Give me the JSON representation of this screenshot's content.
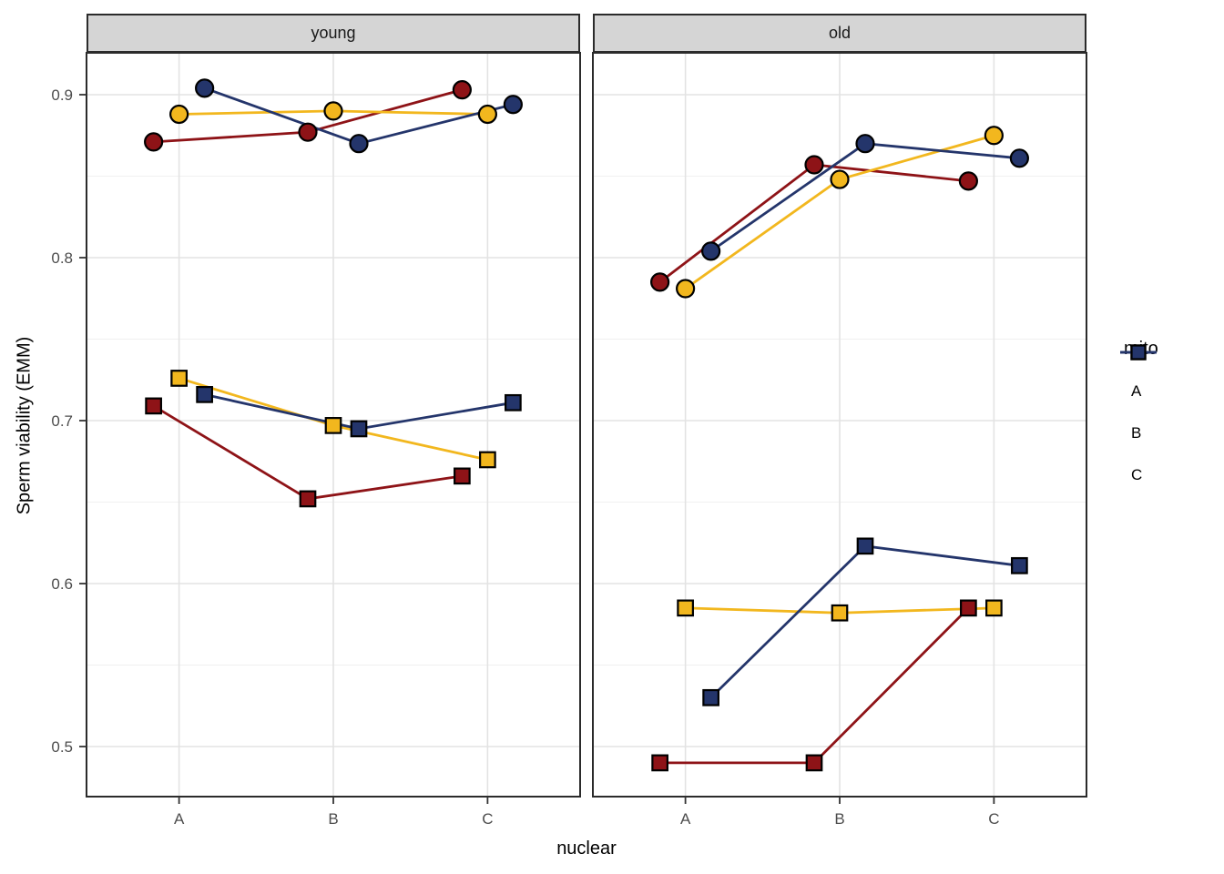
{
  "chart_data": {
    "type": "line",
    "title": "",
    "facets": [
      "young",
      "old"
    ],
    "categories": [
      "A",
      "B",
      "C"
    ],
    "xlabel": "nuclear",
    "ylabel": "Sperm viability (EMM)",
    "y_ticks": [
      0.5,
      0.6,
      0.7,
      0.8,
      0.9
    ],
    "y_tick_labels": [
      "0.5",
      "0.6",
      "0.7",
      "0.8",
      "0.9"
    ],
    "y_minor_ticks": [
      0.55,
      0.65,
      0.75,
      0.85
    ],
    "ylim": [
      0.469,
      0.926
    ],
    "grid": "major-and-minor",
    "legend": {
      "title": "mito",
      "position": "right",
      "entries": [
        {
          "label": "A",
          "color": "#8E1317"
        },
        {
          "label": "B",
          "color": "#F2B71E"
        },
        {
          "label": "C",
          "color": "#24356B"
        }
      ]
    },
    "series": [
      {
        "facet": "young",
        "mito": "A",
        "marker": "circle",
        "color": "#8E1317",
        "values": [
          0.871,
          0.877,
          0.903
        ]
      },
      {
        "facet": "young",
        "mito": "B",
        "marker": "circle",
        "color": "#F2B71E",
        "values": [
          0.888,
          0.89,
          0.888
        ]
      },
      {
        "facet": "young",
        "mito": "C",
        "marker": "circle",
        "color": "#24356B",
        "values": [
          0.904,
          0.87,
          0.894
        ]
      },
      {
        "facet": "young",
        "mito": "A",
        "marker": "square",
        "color": "#8E1317",
        "values": [
          0.709,
          0.652,
          0.666
        ]
      },
      {
        "facet": "young",
        "mito": "B",
        "marker": "square",
        "color": "#F2B71E",
        "values": [
          0.726,
          0.697,
          0.676
        ]
      },
      {
        "facet": "young",
        "mito": "C",
        "marker": "square",
        "color": "#24356B",
        "values": [
          0.716,
          0.695,
          0.711
        ]
      },
      {
        "facet": "old",
        "mito": "A",
        "marker": "circle",
        "color": "#8E1317",
        "values": [
          0.785,
          0.857,
          0.847
        ]
      },
      {
        "facet": "old",
        "mito": "B",
        "marker": "circle",
        "color": "#F2B71E",
        "values": [
          0.781,
          0.848,
          0.875
        ]
      },
      {
        "facet": "old",
        "mito": "C",
        "marker": "circle",
        "color": "#24356B",
        "values": [
          0.804,
          0.87,
          0.861
        ]
      },
      {
        "facet": "old",
        "mito": "A",
        "marker": "square",
        "color": "#8E1317",
        "values": [
          0.49,
          0.49,
          0.585
        ]
      },
      {
        "facet": "old",
        "mito": "B",
        "marker": "square",
        "color": "#F2B71E",
        "values": [
          0.585,
          0.582,
          0.585
        ]
      },
      {
        "facet": "old",
        "mito": "C",
        "marker": "square",
        "color": "#24356B",
        "values": [
          0.53,
          0.623,
          0.611
        ]
      }
    ],
    "style_colors": {
      "strip_fill": "#D5D5D5",
      "panel_border": "#2b2b2b",
      "grid_major": "#E3E3E3",
      "grid_minor": "#F0F0F0",
      "tick_label": "#4D4D4D"
    }
  }
}
